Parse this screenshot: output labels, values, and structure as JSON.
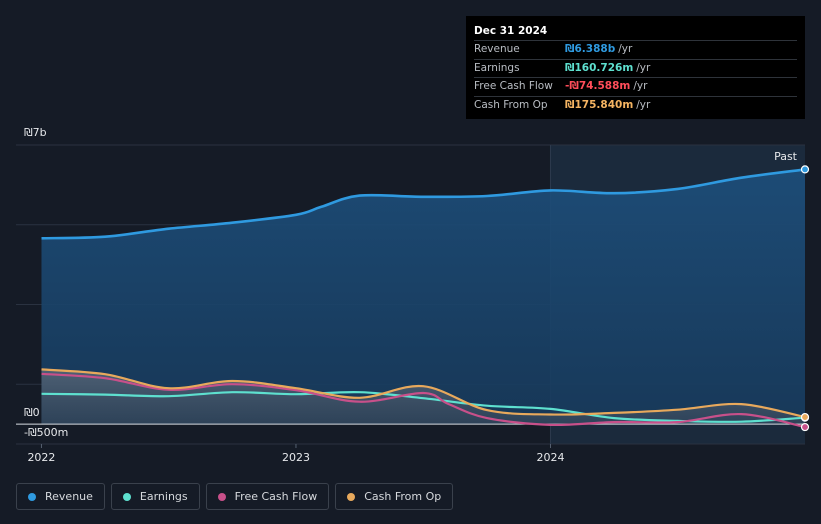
{
  "tooltip": {
    "date": "Dec 31 2024",
    "rows": [
      {
        "label": "Revenue",
        "value": "₪6.388b",
        "unit": "/yr",
        "color": "#2f9ae0"
      },
      {
        "label": "Earnings",
        "value": "₪160.726m",
        "unit": "/yr",
        "color": "#5ee0cf"
      },
      {
        "label": "Free Cash Flow",
        "value": "-₪74.588m",
        "unit": "/yr",
        "color": "#ff4d5a"
      },
      {
        "label": "Cash From Op",
        "value": "₪175.840m",
        "unit": "/yr",
        "color": "#f5b462"
      }
    ]
  },
  "legend": [
    {
      "label": "Revenue",
      "color": "#2f9ae0",
      "icon": "circle-dot-icon"
    },
    {
      "label": "Earnings",
      "color": "#5ee0cf",
      "icon": "circle-dot-icon"
    },
    {
      "label": "Free Cash Flow",
      "color": "#c8508a",
      "icon": "circle-dot-icon"
    },
    {
      "label": "Cash From Op",
      "color": "#e8a95c",
      "icon": "circle-dot-icon"
    }
  ],
  "chart_data": {
    "type": "area",
    "x_unit": "year",
    "ylim": [
      -500,
      7000
    ],
    "y_unit": "₪ millions",
    "ytick_labels": [
      {
        "value": 7000,
        "label": "₪7b"
      },
      {
        "value": 0,
        "label": "₪0"
      },
      {
        "value": -500,
        "label": "-₪500m"
      }
    ],
    "xtick_labels": [
      {
        "value": 2022,
        "label": "2022"
      },
      {
        "value": 2023,
        "label": "2023"
      },
      {
        "value": 2024,
        "label": "2024"
      }
    ],
    "xlim": [
      2021.9,
      2025.0
    ],
    "past_label": "Past",
    "past_start": 2024.0,
    "series": [
      {
        "name": "Revenue",
        "color": "#2f9ae0",
        "x": [
          2022.0,
          2022.25,
          2022.5,
          2022.75,
          2023.0,
          2023.1,
          2023.25,
          2023.5,
          2023.75,
          2024.0,
          2024.25,
          2024.5,
          2024.75,
          2025.0
        ],
        "y": [
          4660,
          4700,
          4900,
          5050,
          5250,
          5450,
          5730,
          5700,
          5720,
          5860,
          5790,
          5900,
          6180,
          6388
        ]
      },
      {
        "name": "Earnings",
        "color": "#5ee0cf",
        "x": [
          2022.0,
          2022.25,
          2022.5,
          2022.75,
          2023.0,
          2023.25,
          2023.5,
          2023.75,
          2024.0,
          2024.25,
          2024.5,
          2024.75,
          2025.0
        ],
        "y": [
          760,
          740,
          700,
          800,
          750,
          800,
          650,
          460,
          380,
          150,
          80,
          60,
          160.7
        ]
      },
      {
        "name": "Free Cash Flow",
        "color": "#c8508a",
        "x": [
          2022.0,
          2022.25,
          2022.5,
          2022.75,
          2023.0,
          2023.25,
          2023.5,
          2023.6,
          2023.75,
          2024.0,
          2024.25,
          2024.5,
          2024.75,
          2025.0
        ],
        "y": [
          1260,
          1150,
          860,
          1000,
          850,
          560,
          780,
          500,
          150,
          -20,
          50,
          50,
          250,
          -74.6
        ]
      },
      {
        "name": "Cash From Op",
        "color": "#e8a95c",
        "x": [
          2022.0,
          2022.25,
          2022.5,
          2022.75,
          2023.0,
          2023.25,
          2023.5,
          2023.75,
          2024.0,
          2024.25,
          2024.5,
          2024.75,
          2025.0
        ],
        "y": [
          1370,
          1250,
          900,
          1080,
          900,
          660,
          950,
          350,
          240,
          280,
          360,
          500,
          175.8
        ]
      }
    ]
  }
}
